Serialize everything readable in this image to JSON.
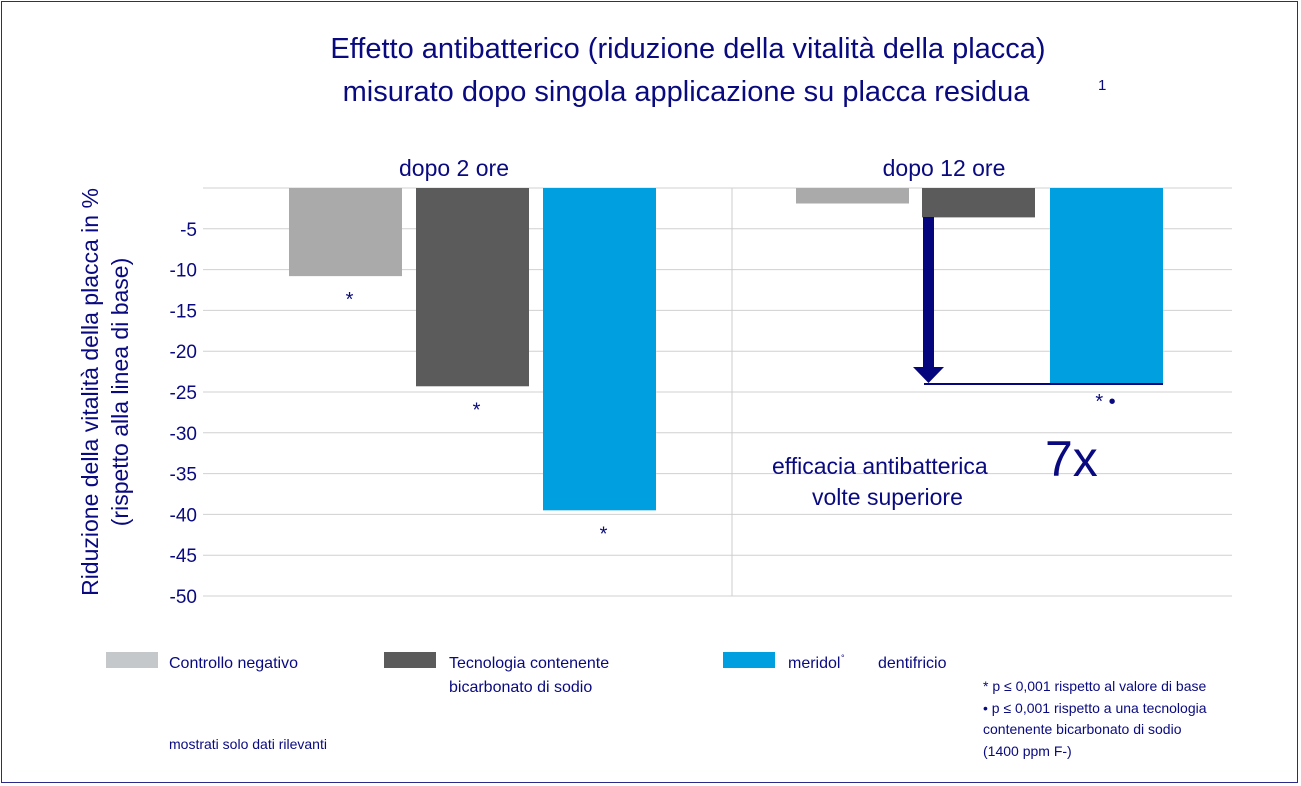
{
  "chart_data": {
    "type": "bar",
    "title": [
      "Effetto antibatterico (riduzione della vitalità della placca)",
      "misurato dopo singola applicazione su placca residua"
    ],
    "title_superscript": "1",
    "ylabel": [
      "Riduzione della vitalità della placca in %",
      "(rispetto alla linea di base)"
    ],
    "ylim": [
      -50,
      0
    ],
    "yticks": [
      -5,
      -10,
      -15,
      -20,
      -25,
      -30,
      -35,
      -40,
      -45,
      -50
    ],
    "grid": true,
    "categories": [
      "dopo 2 ore",
      "dopo 12 ore"
    ],
    "series": [
      {
        "name": "Controllo negativo",
        "color": "#aaaaaa",
        "legend_color": "#c5c8ca",
        "values": [
          -10.8,
          -1.9
        ],
        "markers": [
          "*",
          ""
        ]
      },
      {
        "name": "Tecnologia contenente bicarbonato di sodio",
        "color": "#5b5b5b",
        "values": [
          -24.3,
          -3.6
        ],
        "markers": [
          "*",
          ""
        ]
      },
      {
        "name": "meridol® dentifricio",
        "color": "#009fdf",
        "values": [
          -39.5,
          -24.0
        ],
        "markers": [
          "*",
          "* •"
        ]
      }
    ],
    "legend": [
      "Controllo negativo",
      "Tecnologia contenente",
      "bicarbonato di sodio",
      "meridol",
      "°",
      "dentifricio"
    ],
    "annotation": {
      "text": [
        "efficacia antibatterica",
        "volte superiore"
      ],
      "big": "7x"
    },
    "footnotes": [
      "* p ≤ 0,001 rispetto al valore di base",
      "• p ≤ 0,001 rispetto a una tecnologia",
      "contenente bicarbonato di sodio",
      "(1400 ppm F-)"
    ],
    "note": "mostrati solo  dati rilevanti",
    "legend_placement": "bottom"
  }
}
